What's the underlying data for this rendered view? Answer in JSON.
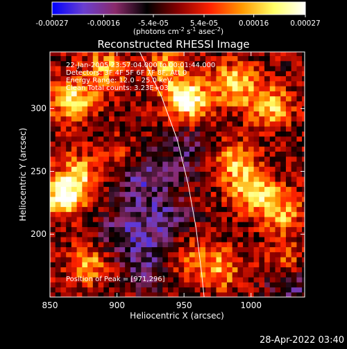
{
  "colorbar": {
    "ticks": [
      {
        "value": -0.00027,
        "label": "-0.00027"
      },
      {
        "value": -0.00016,
        "label": "-0.00016"
      },
      {
        "value": -5.4e-05,
        "label": "-5.4e-05"
      },
      {
        "value": 5.4e-05,
        "label": "5.4e-05"
      },
      {
        "value": 0.00016,
        "label": "0.00016"
      },
      {
        "value": 0.00027,
        "label": "0.00027"
      }
    ],
    "range": [
      -0.00027,
      0.00027
    ],
    "units_main": "(photons cm",
    "units_sup1": "-2",
    "units_mid": " s",
    "units_sup2": "-1",
    "units_end": " asec",
    "units_sup3": "-2",
    "units_close": ")",
    "colors": [
      "#0000ff",
      "#6a3fd0",
      "#8a2a6a",
      "#000000",
      "#8a0000",
      "#ff2200",
      "#ff9900",
      "#ffff66",
      "#ffffff"
    ]
  },
  "chart_data": {
    "type": "heatmap",
    "title": "Reconstructed RHESSI Image",
    "xlabel": "Heliocentric X (arcsec)",
    "ylabel": "Heliocentric Y (arcsec)",
    "xlim": [
      850,
      1040
    ],
    "ylim": [
      150,
      345
    ],
    "x_ticks": [
      {
        "value": 850,
        "label": "850"
      },
      {
        "value": 900,
        "label": "900"
      },
      {
        "value": 950,
        "label": "950"
      },
      {
        "value": 1000,
        "label": "1000"
      }
    ],
    "y_ticks": [
      {
        "value": 200,
        "label": "200"
      },
      {
        "value": 250,
        "label": "250"
      },
      {
        "value": 300,
        "label": "300"
      }
    ],
    "limb_curve": [
      [
        917,
        345
      ],
      [
        933,
        310
      ],
      [
        945,
        275
      ],
      [
        953,
        240
      ],
      [
        959,
        205
      ],
      [
        963,
        170
      ],
      [
        965,
        150
      ]
    ],
    "hotspots": [
      {
        "x": 950,
        "y": 305,
        "intensity": 1.0
      },
      {
        "x": 985,
        "y": 318,
        "intensity": 0.75
      },
      {
        "x": 1012,
        "y": 300,
        "intensity": 0.7
      },
      {
        "x": 865,
        "y": 305,
        "intensity": 0.8
      },
      {
        "x": 858,
        "y": 228,
        "intensity": 0.9
      },
      {
        "x": 870,
        "y": 245,
        "intensity": 0.6
      },
      {
        "x": 890,
        "y": 330,
        "intensity": 0.55
      },
      {
        "x": 878,
        "y": 175,
        "intensity": 0.55
      },
      {
        "x": 1000,
        "y": 232,
        "intensity": 0.75
      },
      {
        "x": 1020,
        "y": 215,
        "intensity": 0.6
      },
      {
        "x": 985,
        "y": 255,
        "intensity": 0.6
      },
      {
        "x": 975,
        "y": 170,
        "intensity": 0.55
      },
      {
        "x": 1025,
        "y": 175,
        "intensity": 0.5
      },
      {
        "x": 950,
        "y": 180,
        "intensity": 0.4
      },
      {
        "x": 905,
        "y": 260,
        "intensity": 0.35
      },
      {
        "x": 935,
        "y": 330,
        "intensity": 0.5
      }
    ],
    "coldspots": [
      {
        "x": 915,
        "y": 245,
        "intensity": 0.8
      },
      {
        "x": 930,
        "y": 210,
        "intensity": 0.7
      },
      {
        "x": 920,
        "y": 175,
        "intensity": 0.6
      },
      {
        "x": 1030,
        "y": 160,
        "intensity": 0.7
      },
      {
        "x": 950,
        "y": 265,
        "intensity": 0.5
      },
      {
        "x": 900,
        "y": 200,
        "intensity": 0.5
      }
    ]
  },
  "annotations": {
    "time": "22-Jan-2005 23:57:04.000 to 00:01:44.000",
    "detectors": "Detectors: 3F 4F 5F 6F 7F 8F, Att 0",
    "energy": "Energy Range: 12.0 - 25.0 keV",
    "clean": "Clean     Total counts: 3.23E+03",
    "peak": "Position of Peak = [971,296]"
  },
  "footer": {
    "timestamp": "28-Apr-2022 03:40"
  }
}
